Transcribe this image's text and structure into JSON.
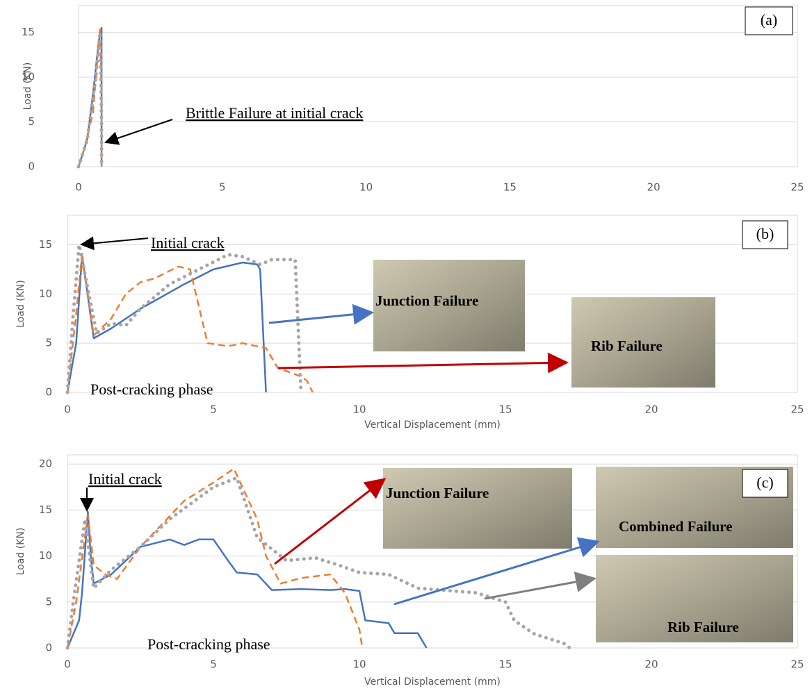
{
  "chart_data": [
    {
      "type": "line",
      "panel_label": "(a)",
      "y_label": "Load (KN)",
      "xlim": [
        0,
        25
      ],
      "ylim": [
        0,
        18
      ],
      "xticks": [
        0,
        5,
        10,
        15,
        20,
        25
      ],
      "yticks": [
        0,
        5,
        10,
        15
      ],
      "grid": true,
      "series": [
        {
          "color": "#4472c4",
          "style": "solid",
          "x": [
            0,
            0.3,
            0.5,
            0.7,
            0.8,
            0.8
          ],
          "values": [
            0,
            3,
            8,
            14,
            15.5,
            0
          ]
        },
        {
          "color": "#ed7d31",
          "style": "dashed",
          "x": [
            0,
            0.2,
            0.5,
            0.75,
            0.8,
            0.8
          ],
          "values": [
            0,
            2,
            6,
            15.6,
            8,
            0
          ]
        },
        {
          "color": "#a5a5a5",
          "style": "dotted",
          "x": [
            0,
            0.3,
            0.6,
            0.75,
            0.8,
            0.8
          ],
          "values": [
            0,
            3,
            10,
            15,
            5,
            0
          ]
        }
      ],
      "annotations": [
        "Brittle Failure at initial crack"
      ]
    },
    {
      "type": "line",
      "panel_label": "(b)",
      "x_label": "Vertical Displacement (mm)",
      "y_label": "Load (KN)",
      "xlim": [
        0,
        25
      ],
      "ylim": [
        0,
        18
      ],
      "xticks": [
        0,
        5,
        10,
        15,
        20,
        25
      ],
      "yticks": [
        0,
        5,
        10,
        15
      ],
      "grid": true,
      "series": [
        {
          "color": "#4472c4",
          "style": "solid",
          "x": [
            0,
            0.3,
            0.5,
            0.9,
            1.5,
            2.5,
            4,
            5,
            6,
            6.5,
            6.6,
            6.8
          ],
          "values": [
            0,
            5,
            14,
            5.5,
            6.5,
            8.5,
            11,
            12.5,
            13.2,
            13,
            12.5,
            0
          ]
        },
        {
          "color": "#ed7d31",
          "style": "dashed",
          "x": [
            0,
            0.3,
            0.5,
            0.9,
            1.5,
            2,
            2.5,
            3,
            3.8,
            4.2,
            4.8,
            5.5,
            6,
            6.8,
            7.2,
            8,
            8.2,
            8.4
          ],
          "values": [
            0,
            8,
            14.1,
            5.8,
            7.5,
            10,
            11.2,
            11.6,
            12.8,
            12.5,
            5,
            4.7,
            5,
            4.5,
            2.5,
            1.6,
            1.2,
            0
          ]
        },
        {
          "color": "#a5a5a5",
          "style": "dotted",
          "x": [
            0,
            0.2,
            0.4,
            0.6,
            1,
            1.5,
            2,
            2.5,
            3.5,
            4.5,
            5.5,
            6,
            6.6,
            7,
            7.5,
            7.8,
            8
          ],
          "values": [
            0,
            8,
            15,
            12,
            6,
            7,
            6.8,
            8.5,
            11,
            12.5,
            14,
            13.8,
            13,
            13.5,
            13.5,
            13.5,
            0
          ]
        }
      ],
      "annotations": [
        "Initial crack",
        "Junction Failure",
        "Rib Failure",
        "Post-cracking phase"
      ]
    },
    {
      "type": "line",
      "panel_label": "(c)",
      "x_label": "Vertical Displacement (mm)",
      "y_label": "Load (KN)",
      "xlim": [
        0,
        25
      ],
      "ylim": [
        0,
        21
      ],
      "xticks": [
        0,
        5,
        10,
        15,
        20,
        25
      ],
      "yticks": [
        0,
        5,
        10,
        15,
        20
      ],
      "grid": true,
      "series": [
        {
          "color": "#4472c4",
          "style": "solid",
          "x": [
            0,
            0.4,
            0.5,
            0.7,
            0.8,
            0.9,
            1.5,
            2,
            2.5,
            3.5,
            4,
            4.5,
            5,
            5.5,
            5.8,
            6.5,
            7,
            8,
            9,
            9.5,
            10,
            10.2,
            11,
            11.2,
            12,
            12.3
          ],
          "values": [
            0,
            3,
            6,
            14.8,
            10,
            7,
            8,
            9.5,
            11,
            11.8,
            11.2,
            11.8,
            11.8,
            9.5,
            8.2,
            8,
            6.3,
            6.4,
            6.3,
            6.4,
            6.2,
            3,
            2.7,
            1.6,
            1.6,
            0
          ]
        },
        {
          "color": "#ed7d31",
          "style": "dashed",
          "x": [
            0,
            0.3,
            0.7,
            0.9,
            1.3,
            1.7,
            2.5,
            4,
            5,
            5.7,
            6.5,
            6.8,
            7.3,
            8,
            9,
            9.5,
            10,
            10.1
          ],
          "values": [
            0,
            5,
            14.5,
            9,
            8,
            7.5,
            11,
            16,
            18,
            19.5,
            14,
            10,
            7,
            7.6,
            8,
            6,
            2,
            0
          ]
        },
        {
          "color": "#a5a5a5",
          "style": "dotted",
          "x": [
            0,
            0.2,
            0.6,
            0.9,
            1.5,
            2.5,
            3.5,
            5,
            5.8,
            6.5,
            7.5,
            8.5,
            9.3,
            10,
            11,
            12,
            14,
            15,
            15.3,
            16,
            17,
            17.2
          ],
          "values": [
            0,
            5,
            14,
            6.5,
            8.5,
            11,
            14,
            17.5,
            18.5,
            12,
            9.5,
            9.8,
            9,
            8.2,
            8,
            6.5,
            6,
            5,
            3,
            1.5,
            0.5,
            0
          ]
        }
      ],
      "annotations": [
        "Initial crack",
        "Junction Failure",
        "Combined Failure",
        "Rib Failure",
        "Post-cracking phase"
      ]
    }
  ]
}
